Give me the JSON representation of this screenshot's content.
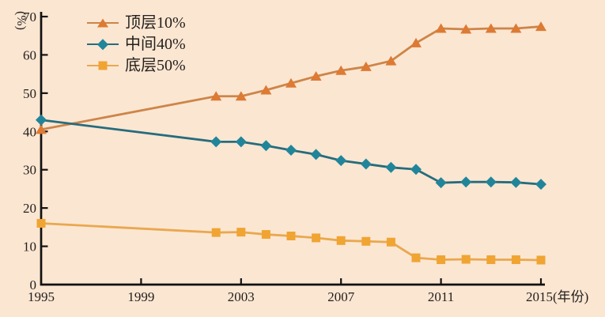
{
  "chart_data": {
    "type": "line",
    "title": "",
    "ylabel": "(%)",
    "x_axis_suffix": "(年份)",
    "x": [
      1995,
      2002,
      2003,
      2004,
      2005,
      2006,
      2007,
      2008,
      2009,
      2010,
      2011,
      2012,
      2013,
      2014,
      2015
    ],
    "series": [
      {
        "id": "top-10",
        "name": "顶层10%",
        "marker": "triangle",
        "color": "#dd7a33",
        "line_color": "#cd8548",
        "values": [
          40.5,
          49.2,
          49.2,
          50.8,
          52.6,
          54.4,
          55.9,
          56.9,
          58.4,
          63.1,
          66.9,
          66.7,
          66.9,
          66.9,
          67.4
        ]
      },
      {
        "id": "middle-40",
        "name": "中间40%",
        "marker": "diamond",
        "color": "#21859a",
        "line_color": "#266c7c",
        "values": [
          43.0,
          37.3,
          37.3,
          36.3,
          35.1,
          34.0,
          32.4,
          31.5,
          30.6,
          30.1,
          26.6,
          26.8,
          26.8,
          26.7,
          26.2
        ]
      },
      {
        "id": "bottom-50",
        "name": "底层50%",
        "marker": "square",
        "color": "#f0a432",
        "line_color": "#e9a84e",
        "values": [
          16.0,
          13.6,
          13.7,
          13.1,
          12.7,
          12.2,
          11.5,
          11.3,
          11.1,
          7.0,
          6.5,
          6.6,
          6.5,
          6.5,
          6.4
        ]
      }
    ],
    "yticks": [
      0,
      10,
      20,
      30,
      40,
      50,
      60,
      70
    ],
    "xticks": [
      1995,
      1999,
      2003,
      2007,
      2011,
      2015
    ],
    "ylim": [
      0,
      70
    ],
    "xlim": [
      1995,
      2015
    ],
    "grid": false,
    "legend_position": "top-left-inside",
    "background": "#fbe6d2",
    "axis_color": "#111111"
  }
}
